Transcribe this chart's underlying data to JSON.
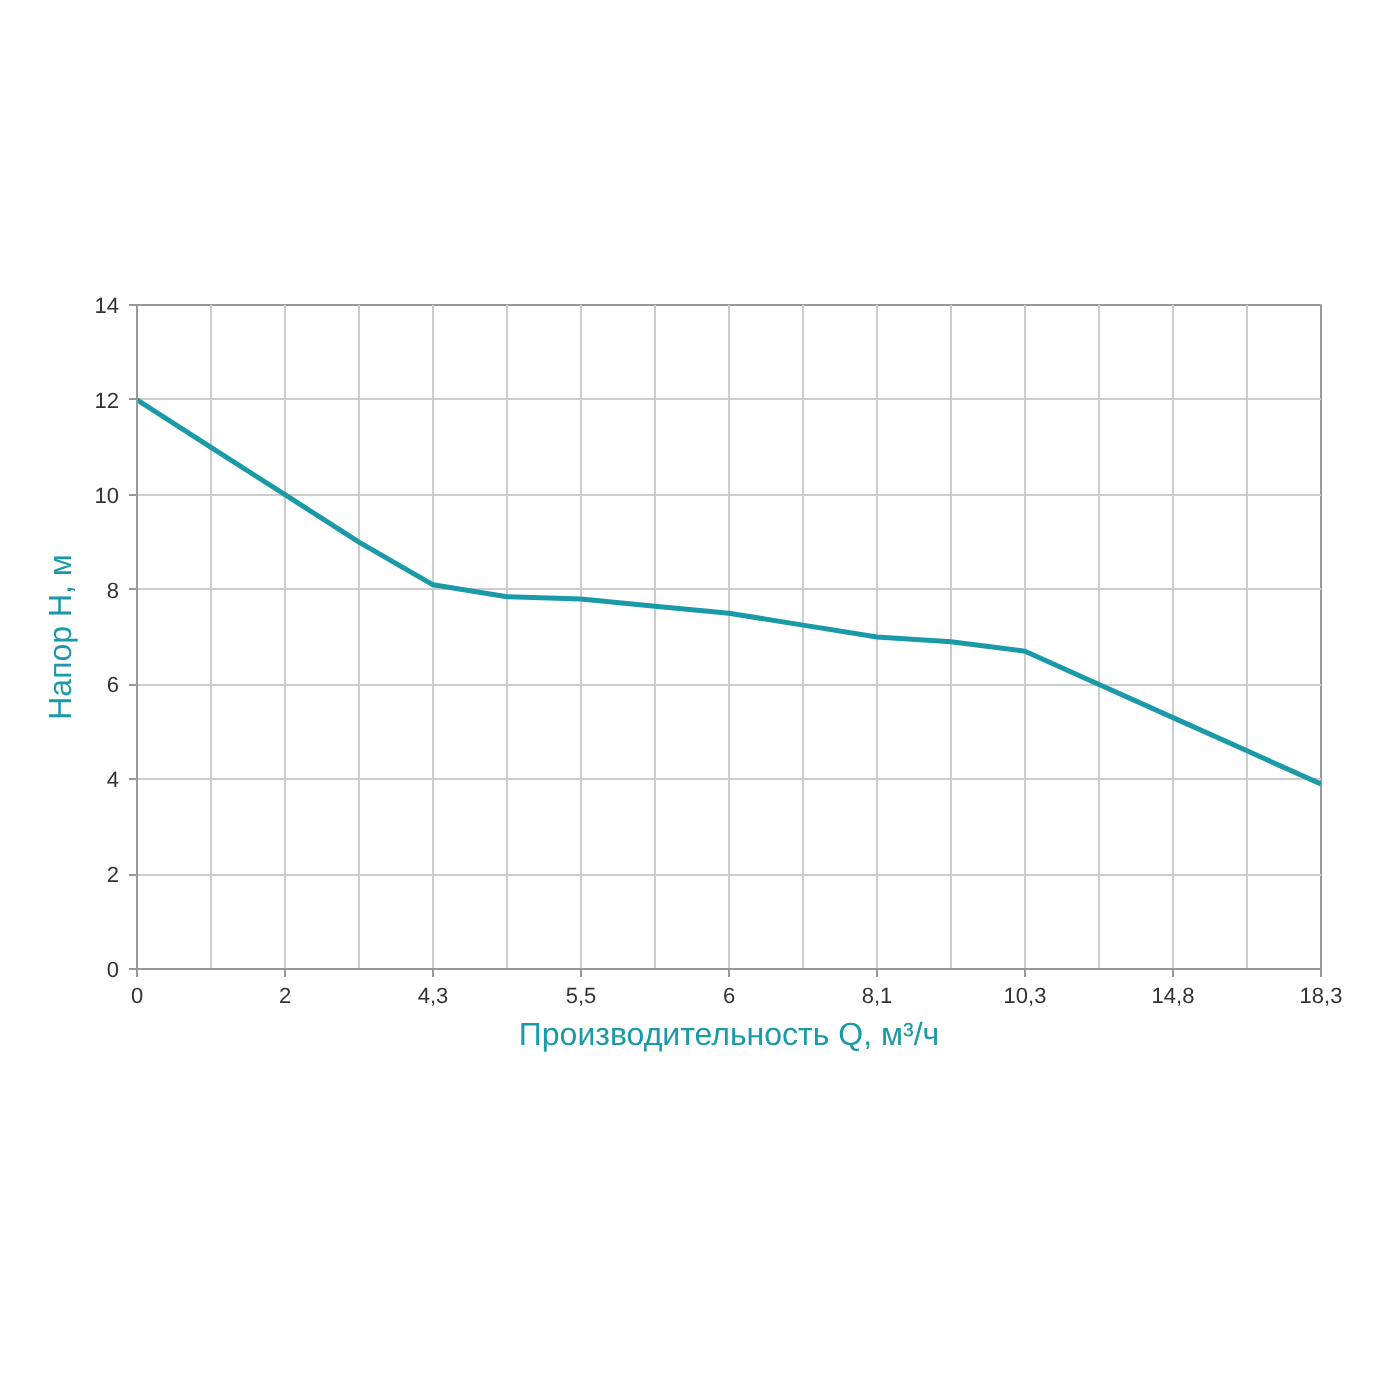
{
  "chart_data": {
    "type": "line",
    "xlabel": "Производительность Q, м³/ч",
    "ylabel": "Напор Н, м",
    "categories": [
      "0",
      null,
      "2",
      null,
      "4,3",
      null,
      "5,5",
      null,
      "6",
      null,
      "8,1",
      null,
      "10,3",
      null,
      "14,8",
      null,
      "18,3"
    ],
    "series": [
      {
        "color": "#1a9aa8",
        "values": [
          12,
          11,
          10,
          9,
          8.1,
          7.85,
          7.8,
          7.65,
          7.5,
          7.25,
          7.0,
          6.9,
          6.7,
          6.0,
          5.3,
          4.6,
          3.9
        ]
      }
    ],
    "ylim": [
      0,
      14
    ],
    "yticks": [
      0,
      2,
      4,
      6,
      8,
      10,
      12,
      14
    ],
    "grid": true,
    "marker": "none",
    "line_style": "solid"
  }
}
